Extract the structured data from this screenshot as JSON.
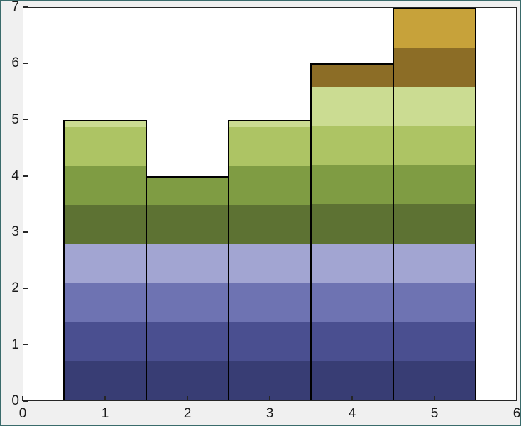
{
  "figure": {
    "background_color": "#f0f0f0",
    "border_color": "#3a6b6b"
  },
  "plot": {
    "background_color": "#ffffff",
    "frame_color": "#262626",
    "tick_color": "#262626",
    "tick_label_color": "#1a1a1a"
  },
  "chart_data": {
    "type": "bar",
    "style": "banded-histogram",
    "x": [
      1,
      2,
      3,
      4,
      5
    ],
    "bar_width": 1,
    "values": [
      5,
      4,
      5,
      6,
      7
    ],
    "band_height": 0.7,
    "band_colors": [
      "#383d74",
      "#4a4f90",
      "#6e73b2",
      "#a2a5d2",
      "#5d7233",
      "#7f9c43",
      "#adc464",
      "#cbdc92",
      "#8c6d26",
      "#c7a23a"
    ],
    "bar_edge_color": "#000000",
    "xlim": [
      0,
      6
    ],
    "ylim": [
      0,
      7
    ],
    "x_tick_labels": [
      "0",
      "1",
      "2",
      "3",
      "4",
      "5",
      "6"
    ],
    "y_tick_labels": [
      "0",
      "1",
      "2",
      "3",
      "4",
      "5",
      "6",
      "7"
    ],
    "grid": false,
    "legend_position": "none"
  }
}
